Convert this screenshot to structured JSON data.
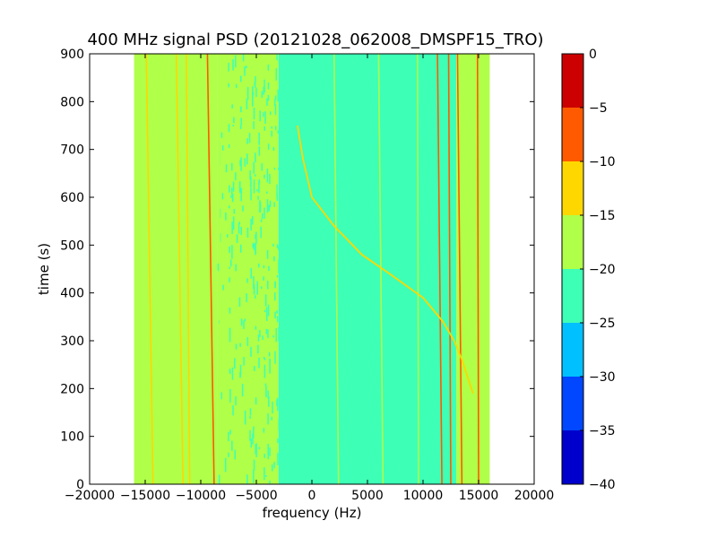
{
  "chart_data": {
    "type": "heatmap",
    "title": "400 MHz signal PSD (20121028_062008_DMSPF15_TRO)",
    "xlabel": "frequency (Hz)",
    "ylabel": "time (s)",
    "xlim": [
      -20000,
      20000
    ],
    "ylim": [
      0,
      900
    ],
    "x_ticks": [
      -20000,
      -15000,
      -10000,
      -5000,
      0,
      5000,
      10000,
      15000,
      20000
    ],
    "y_ticks": [
      0,
      100,
      200,
      300,
      400,
      500,
      600,
      700,
      800,
      900
    ],
    "x_tick_labels": [
      "−20000",
      "−15000",
      "−10000",
      "−5000",
      "0",
      "5000",
      "10000",
      "15000",
      "20000"
    ],
    "y_tick_labels": [
      "0",
      "100",
      "200",
      "300",
      "400",
      "500",
      "600",
      "700",
      "800",
      "900"
    ],
    "data_extent_x": [
      -16000,
      16000
    ],
    "grid": false,
    "colorbar": {
      "range": [
        -40,
        0
      ],
      "ticks": [
        0,
        -5,
        -10,
        -15,
        -20,
        -25,
        -30,
        -35,
        -40
      ],
      "tick_labels": [
        "0",
        "−5",
        "−10",
        "−15",
        "−20",
        "−25",
        "−30",
        "−35",
        "−40"
      ],
      "levels": [
        {
          "from": -40,
          "to": -35,
          "color": "#0000cd"
        },
        {
          "from": -35,
          "to": -30,
          "color": "#0047ff"
        },
        {
          "from": -30,
          "to": -25,
          "color": "#00c0ff"
        },
        {
          "from": -25,
          "to": -20,
          "color": "#3dffb6"
        },
        {
          "from": -20,
          "to": -15,
          "color": "#b0ff48"
        },
        {
          "from": -15,
          "to": -10,
          "color": "#ffd700"
        },
        {
          "from": -10,
          "to": -5,
          "color": "#ff5a00"
        },
        {
          "from": -5,
          "to": 0,
          "color": "#cc0000"
        }
      ]
    },
    "background_regions": [
      {
        "x_from": -16000,
        "x_to": -8500,
        "level": -17.5
      },
      {
        "x_from": -8500,
        "x_to": -3000,
        "level": -17.5,
        "mixed_with": -22.5
      },
      {
        "x_from": -3000,
        "x_to": 13000,
        "level": -22.5
      },
      {
        "x_from": 13000,
        "x_to": 16000,
        "level": -17.5
      }
    ],
    "vertical_lines": [
      {
        "x0": -14300,
        "x1": -14900,
        "level": -12.5
      },
      {
        "x0": -11600,
        "x1": -12200,
        "level": -12.5
      },
      {
        "x0": -11000,
        "x1": -11300,
        "level": -12.5
      },
      {
        "x0": -8800,
        "x1": -9400,
        "level": -7.5
      },
      {
        "x0": -8200,
        "x1": -8400,
        "level": -17.5
      },
      {
        "x0": 2400,
        "x1": 2000,
        "level": -17.5
      },
      {
        "x0": 6400,
        "x1": 6000,
        "level": -17.5
      },
      {
        "x0": 9600,
        "x1": 9500,
        "level": -17.5
      },
      {
        "x0": 11700,
        "x1": 11300,
        "level": -7.5
      },
      {
        "x0": 12500,
        "x1": 12300,
        "level": -7.5
      },
      {
        "x0": 13500,
        "x1": 13100,
        "level": -7.5
      },
      {
        "x0": 15000,
        "x1": 14900,
        "level": -7.5
      }
    ],
    "doppler_trace": {
      "level": -10,
      "points": [
        [
          -1300,
          750
        ],
        [
          -800,
          680
        ],
        [
          0,
          600
        ],
        [
          2000,
          540
        ],
        [
          4500,
          480
        ],
        [
          7000,
          440
        ],
        [
          10000,
          390
        ],
        [
          11800,
          340
        ],
        [
          12800,
          300
        ],
        [
          13500,
          260
        ],
        [
          14500,
          190
        ]
      ]
    }
  }
}
